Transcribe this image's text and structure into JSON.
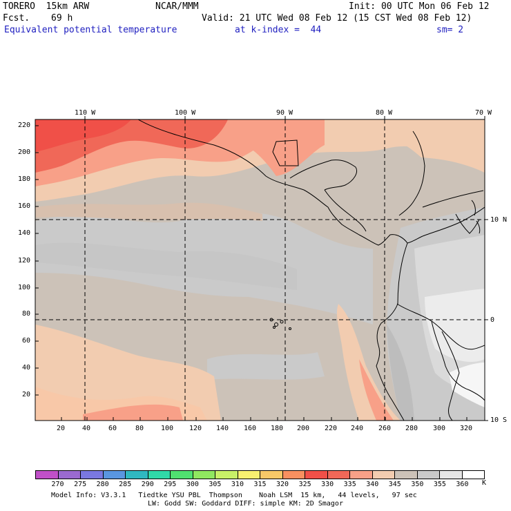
{
  "header": {
    "model": "TORERO  15km ARW",
    "org": "NCAR/MMM",
    "init": "Init: 00 UTC Mon 06 Feb 12",
    "fcst_label": "Fcst.",
    "fcst_value": "69 h",
    "valid": "Valid: 21 UTC Wed 08 Feb 12 (15 CST Wed 08 Feb 12)",
    "field": "Equivalent potential temperature",
    "level": "at k-index =  44",
    "smooth": "sm= 2"
  },
  "map": {
    "top_labels": [
      "110 W",
      "100 W",
      "90 W",
      "80 W",
      "70 W"
    ],
    "right_labels": [
      "10 N",
      "0",
      "10 S"
    ],
    "y_ticks": [
      "220",
      "200",
      "180",
      "160",
      "140",
      "120",
      "100",
      "80",
      "60",
      "40",
      "20"
    ],
    "x_ticks": [
      "20",
      "40",
      "60",
      "80",
      "100",
      "120",
      "140",
      "160",
      "180",
      "200",
      "220",
      "240",
      "260",
      "280",
      "300",
      "320"
    ]
  },
  "colorbar": {
    "unit": "K",
    "labels": [
      "270",
      "275",
      "280",
      "285",
      "290",
      "295",
      "300",
      "305",
      "310",
      "315",
      "320",
      "325",
      "330",
      "335",
      "340",
      "345",
      "350",
      "355",
      "360"
    ],
    "colors": [
      "#c050c8",
      "#9a6ad0",
      "#7a78e0",
      "#5a96e0",
      "#30b8c0",
      "#30d8a8",
      "#50e070",
      "#90e860",
      "#c8f068",
      "#f8f070",
      "#f8c868",
      "#f89060",
      "#f05048",
      "#f06858",
      "#f8a088",
      "#f2ccb0",
      "#ccc2b8",
      "#cacaca",
      "#e6e6e6",
      "#ffffff"
    ]
  },
  "footer": {
    "line1": "Model Info: V3.3.1   Tiedtke YSU PBL  Thompson    Noah LSM  15 km,   44 levels,   97 sec",
    "line2": "LW: Godd SW: Goddard DIFF: simple KM: 2D Smagor"
  }
}
